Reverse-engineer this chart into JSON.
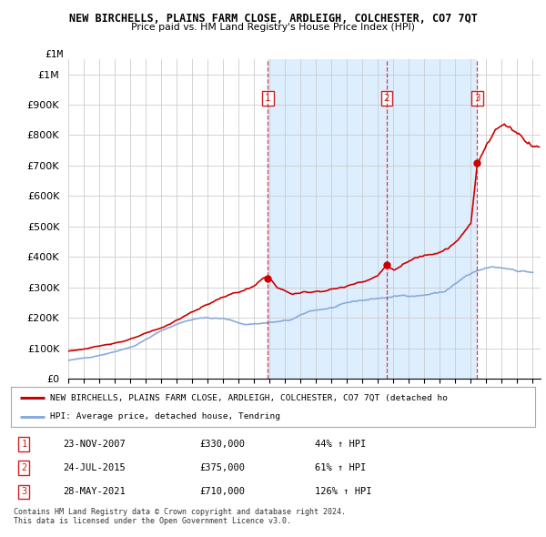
{
  "title": "NEW BIRCHELLS, PLAINS FARM CLOSE, ARDLEIGH, COLCHESTER, CO7 7QT",
  "subtitle": "Price paid vs. HM Land Registry's House Price Index (HPI)",
  "legend_line1": "NEW BIRCHELLS, PLAINS FARM CLOSE, ARDLEIGH, COLCHESTER, CO7 7QT (detached ho",
  "legend_line2": "HPI: Average price, detached house, Tendring",
  "footnote1": "Contains HM Land Registry data © Crown copyright and database right 2024.",
  "footnote2": "This data is licensed under the Open Government Licence v3.0.",
  "transactions": [
    {
      "num": 1,
      "date": "23-NOV-2007",
      "price": 330000,
      "pct": "44%",
      "dir": "↑"
    },
    {
      "num": 2,
      "date": "24-JUL-2015",
      "price": 375000,
      "pct": "61%",
      "dir": "↑"
    },
    {
      "num": 3,
      "date": "28-MAY-2021",
      "price": 710000,
      "pct": "126%",
      "dir": "↑"
    }
  ],
  "vline_years": [
    2007.896,
    2015.559,
    2021.408
  ],
  "property_color": "#cc0000",
  "hpi_color": "#88aadd",
  "shade_color": "#ddeeff",
  "background_color": "#ffffff",
  "grid_color": "#cccccc",
  "ylim_max": 1000000,
  "xlim_start": 1995.0,
  "xlim_end": 2025.5
}
